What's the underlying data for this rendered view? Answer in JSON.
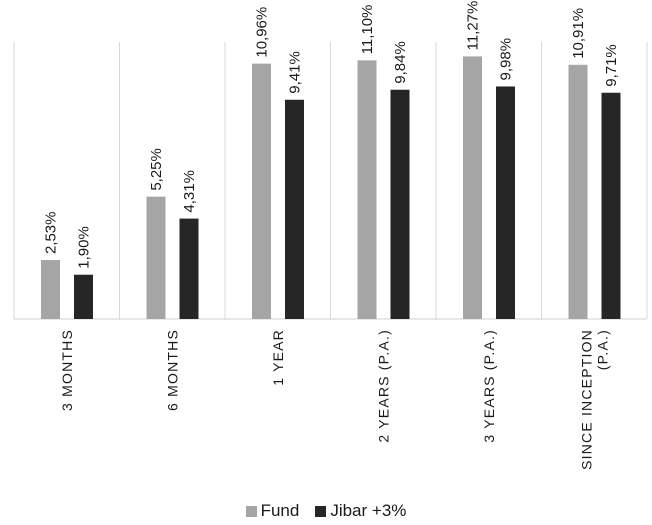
{
  "chart_data": {
    "type": "bar",
    "categories": [
      [
        "3 MONTHS"
      ],
      [
        "6 MONTHS"
      ],
      [
        "1 YEAR"
      ],
      [
        "2 YEARS (P.A.)"
      ],
      [
        "3 YEARS (P.A.)"
      ],
      [
        "SINCE INCEPTION",
        "(P.A.)"
      ]
    ],
    "series": [
      {
        "name": "Fund",
        "color": "#a5a5a5",
        "values": [
          2.53,
          5.25,
          10.96,
          11.1,
          11.27,
          10.91
        ],
        "labels": [
          "2,53%",
          "5,25%",
          "10,96%",
          "11,10%",
          "11,27%",
          "10,91%"
        ]
      },
      {
        "name": "Jibar +3%",
        "color": "#262626",
        "values": [
          1.9,
          4.31,
          9.41,
          9.84,
          9.98,
          9.71
        ],
        "labels": [
          "1,90%",
          "4,31%",
          "9,41%",
          "9,84%",
          "9,98%",
          "9,71%"
        ]
      }
    ],
    "ylim": [
      0,
      12
    ],
    "grid": "vertical category dividers",
    "legend_position": "bottom"
  },
  "legend": {
    "fund_label": "Fund",
    "jibar_label": "Jibar +3%"
  }
}
